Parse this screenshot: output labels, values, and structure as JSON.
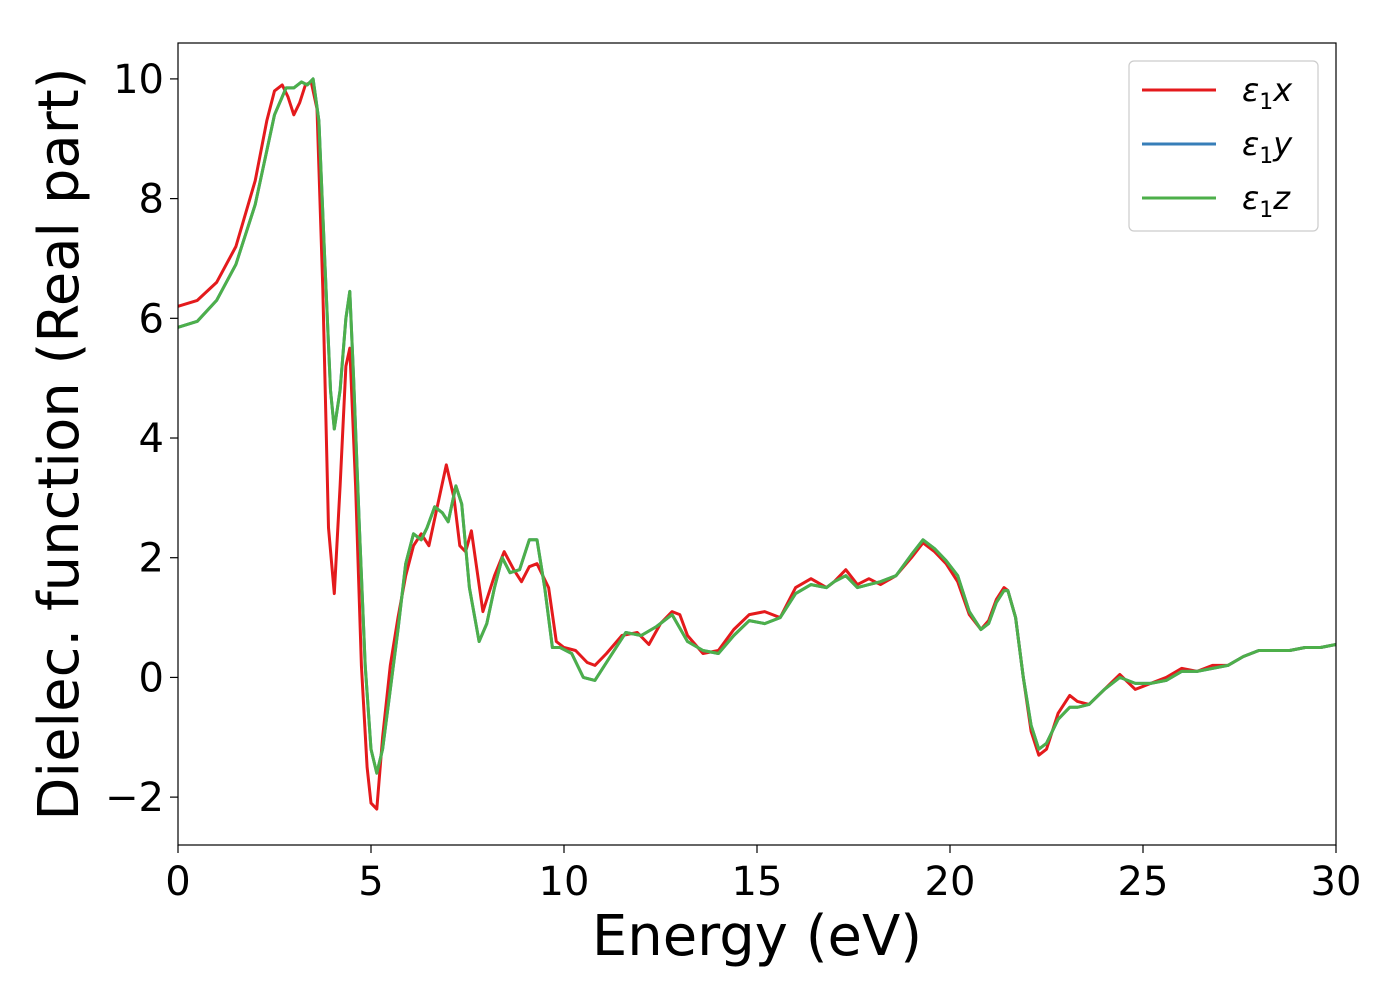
{
  "chart_data": {
    "type": "line",
    "xlabel": "Energy (eV)",
    "ylabel": "Dielec. function (Real part)",
    "xlim": [
      0,
      30
    ],
    "ylim": [
      -2.8,
      10.6
    ],
    "xticks": [
      0,
      5,
      10,
      15,
      20,
      25,
      30
    ],
    "xtick_labels": [
      "0",
      "5",
      "10",
      "15",
      "20",
      "25",
      "30"
    ],
    "yticks": [
      -2,
      0,
      2,
      4,
      6,
      8,
      10
    ],
    "ytick_labels": [
      "−2",
      "0",
      "2",
      "4",
      "6",
      "8",
      "10"
    ],
    "grid": false,
    "legend_position": "top-right",
    "series": [
      {
        "name": "ε1x",
        "legend_main": "ε",
        "legend_sub": "1",
        "legend_suffix": "x",
        "color": "#e41a1c",
        "x": [
          0,
          0.5,
          1.0,
          1.5,
          2.0,
          2.3,
          2.5,
          2.7,
          2.85,
          3.0,
          3.15,
          3.3,
          3.45,
          3.6,
          3.75,
          3.9,
          4.05,
          4.2,
          4.35,
          4.45,
          4.6,
          4.75,
          4.9,
          5.0,
          5.15,
          5.3,
          5.5,
          5.7,
          5.9,
          6.1,
          6.3,
          6.5,
          6.7,
          6.95,
          7.15,
          7.3,
          7.45,
          7.6,
          7.9,
          8.2,
          8.45,
          8.7,
          8.9,
          9.1,
          9.3,
          9.6,
          9.8,
          10.0,
          10.3,
          10.6,
          10.8,
          11.1,
          11.5,
          11.9,
          12.2,
          12.5,
          12.8,
          13.0,
          13.2,
          13.6,
          14.0,
          14.4,
          14.8,
          15.2,
          15.6,
          16.0,
          16.4,
          16.8,
          17.0,
          17.3,
          17.6,
          17.9,
          18.2,
          18.6,
          19.0,
          19.3,
          19.6,
          19.9,
          20.2,
          20.5,
          20.8,
          21.0,
          21.2,
          21.4,
          21.5,
          21.7,
          21.9,
          22.1,
          22.3,
          22.5,
          22.8,
          23.1,
          23.3,
          23.6,
          24.0,
          24.4,
          24.8,
          25.2,
          25.6,
          26.0,
          26.4,
          26.8,
          27.2,
          27.6,
          28.0,
          28.4,
          28.8,
          29.2,
          29.6,
          30.0
        ],
        "y": [
          6.2,
          6.3,
          6.6,
          7.2,
          8.3,
          9.3,
          9.8,
          9.9,
          9.7,
          9.4,
          9.6,
          9.9,
          9.95,
          9.5,
          6.5,
          2.5,
          1.4,
          3.2,
          5.2,
          5.5,
          3.2,
          0.2,
          -1.5,
          -2.1,
          -2.2,
          -1.0,
          0.2,
          1.0,
          1.7,
          2.2,
          2.4,
          2.2,
          2.8,
          3.55,
          3.0,
          2.2,
          2.1,
          2.45,
          1.1,
          1.7,
          2.1,
          1.8,
          1.6,
          1.85,
          1.9,
          1.5,
          0.6,
          0.5,
          0.45,
          0.25,
          0.2,
          0.4,
          0.7,
          0.75,
          0.55,
          0.9,
          1.1,
          1.05,
          0.7,
          0.4,
          0.45,
          0.8,
          1.05,
          1.1,
          1.0,
          1.5,
          1.65,
          1.5,
          1.6,
          1.8,
          1.55,
          1.65,
          1.55,
          1.7,
          2.0,
          2.25,
          2.1,
          1.9,
          1.6,
          1.05,
          0.8,
          0.95,
          1.3,
          1.5,
          1.45,
          1.0,
          0.0,
          -0.9,
          -1.3,
          -1.2,
          -0.6,
          -0.3,
          -0.4,
          -0.45,
          -0.2,
          0.05,
          -0.2,
          -0.1,
          0.0,
          0.15,
          0.1,
          0.2,
          0.2,
          0.35,
          0.45,
          0.45,
          0.45,
          0.5,
          0.5,
          0.55
        ]
      },
      {
        "name": "ε1y",
        "legend_main": "ε",
        "legend_sub": "1",
        "legend_suffix": "y",
        "color": "#377eb8",
        "x": [
          0,
          0.5,
          1.0,
          1.5,
          2.0,
          2.3,
          2.5,
          2.8,
          3.0,
          3.2,
          3.35,
          3.5,
          3.65,
          3.8,
          3.95,
          4.05,
          4.2,
          4.35,
          4.45,
          4.55,
          4.7,
          4.85,
          5.0,
          5.15,
          5.3,
          5.5,
          5.7,
          5.9,
          6.1,
          6.3,
          6.45,
          6.65,
          6.85,
          7.0,
          7.2,
          7.35,
          7.55,
          7.8,
          8.0,
          8.2,
          8.4,
          8.6,
          8.85,
          9.1,
          9.3,
          9.5,
          9.7,
          9.9,
          10.2,
          10.5,
          10.8,
          11.2,
          11.6,
          12.0,
          12.4,
          12.8,
          13.2,
          13.6,
          14.0,
          14.4,
          14.8,
          15.2,
          15.6,
          16.0,
          16.4,
          16.8,
          17.0,
          17.3,
          17.6,
          17.9,
          18.2,
          18.6,
          19.0,
          19.3,
          19.6,
          19.9,
          20.2,
          20.5,
          20.8,
          21.0,
          21.2,
          21.4,
          21.5,
          21.7,
          21.9,
          22.1,
          22.3,
          22.5,
          22.8,
          23.1,
          23.3,
          23.6,
          24.0,
          24.4,
          24.8,
          25.2,
          25.6,
          26.0,
          26.4,
          26.8,
          27.2,
          27.6,
          28.0,
          28.4,
          28.8,
          29.2,
          29.6,
          30.0
        ],
        "y": [
          5.85,
          5.95,
          6.3,
          6.9,
          7.9,
          8.8,
          9.4,
          9.85,
          9.85,
          9.95,
          9.9,
          10.0,
          9.3,
          7.0,
          4.8,
          4.15,
          4.8,
          6.0,
          6.45,
          5.0,
          2.5,
          0.2,
          -1.2,
          -1.6,
          -1.2,
          -0.2,
          0.8,
          1.9,
          2.4,
          2.3,
          2.5,
          2.85,
          2.75,
          2.6,
          3.2,
          2.9,
          1.5,
          0.6,
          0.9,
          1.5,
          2.0,
          1.75,
          1.8,
          2.3,
          2.3,
          1.5,
          0.5,
          0.5,
          0.4,
          0.0,
          -0.05,
          0.35,
          0.75,
          0.7,
          0.85,
          1.05,
          0.6,
          0.45,
          0.4,
          0.7,
          0.95,
          0.9,
          1.0,
          1.4,
          1.55,
          1.5,
          1.6,
          1.7,
          1.5,
          1.55,
          1.6,
          1.7,
          2.05,
          2.3,
          2.15,
          1.95,
          1.7,
          1.1,
          0.8,
          0.9,
          1.25,
          1.45,
          1.45,
          1.0,
          0.0,
          -0.8,
          -1.2,
          -1.1,
          -0.7,
          -0.5,
          -0.5,
          -0.45,
          -0.2,
          0.0,
          -0.1,
          -0.1,
          -0.05,
          0.1,
          0.1,
          0.15,
          0.2,
          0.35,
          0.45,
          0.45,
          0.45,
          0.5,
          0.5,
          0.55
        ]
      },
      {
        "name": "ε1z",
        "legend_main": "ε",
        "legend_sub": "1",
        "legend_suffix": "z",
        "color": "#4daf4a",
        "x": [
          0,
          0.5,
          1.0,
          1.5,
          2.0,
          2.3,
          2.5,
          2.8,
          3.0,
          3.2,
          3.35,
          3.5,
          3.65,
          3.8,
          3.95,
          4.05,
          4.2,
          4.35,
          4.45,
          4.55,
          4.7,
          4.85,
          5.0,
          5.15,
          5.3,
          5.5,
          5.7,
          5.9,
          6.1,
          6.3,
          6.45,
          6.65,
          6.85,
          7.0,
          7.2,
          7.35,
          7.55,
          7.8,
          8.0,
          8.2,
          8.4,
          8.6,
          8.85,
          9.1,
          9.3,
          9.5,
          9.7,
          9.9,
          10.2,
          10.5,
          10.8,
          11.2,
          11.6,
          12.0,
          12.4,
          12.8,
          13.2,
          13.6,
          14.0,
          14.4,
          14.8,
          15.2,
          15.6,
          16.0,
          16.4,
          16.8,
          17.0,
          17.3,
          17.6,
          17.9,
          18.2,
          18.6,
          19.0,
          19.3,
          19.6,
          19.9,
          20.2,
          20.5,
          20.8,
          21.0,
          21.2,
          21.4,
          21.5,
          21.7,
          21.9,
          22.1,
          22.3,
          22.5,
          22.8,
          23.1,
          23.3,
          23.6,
          24.0,
          24.4,
          24.8,
          25.2,
          25.6,
          26.0,
          26.4,
          26.8,
          27.2,
          27.6,
          28.0,
          28.4,
          28.8,
          29.2,
          29.6,
          30.0
        ],
        "y": [
          5.85,
          5.95,
          6.3,
          6.9,
          7.9,
          8.8,
          9.4,
          9.85,
          9.85,
          9.95,
          9.9,
          10.0,
          9.3,
          7.0,
          4.8,
          4.15,
          4.8,
          6.0,
          6.45,
          5.0,
          2.5,
          0.2,
          -1.2,
          -1.6,
          -1.2,
          -0.2,
          0.8,
          1.9,
          2.4,
          2.3,
          2.5,
          2.85,
          2.75,
          2.6,
          3.2,
          2.9,
          1.5,
          0.6,
          0.9,
          1.5,
          2.0,
          1.75,
          1.8,
          2.3,
          2.3,
          1.5,
          0.5,
          0.5,
          0.4,
          0.0,
          -0.05,
          0.35,
          0.75,
          0.7,
          0.85,
          1.05,
          0.6,
          0.45,
          0.4,
          0.7,
          0.95,
          0.9,
          1.0,
          1.4,
          1.55,
          1.5,
          1.6,
          1.7,
          1.5,
          1.55,
          1.6,
          1.7,
          2.05,
          2.3,
          2.15,
          1.95,
          1.7,
          1.1,
          0.8,
          0.9,
          1.25,
          1.45,
          1.45,
          1.0,
          0.0,
          -0.8,
          -1.2,
          -1.1,
          -0.7,
          -0.5,
          -0.5,
          -0.45,
          -0.2,
          0.0,
          -0.1,
          -0.1,
          -0.05,
          0.1,
          0.1,
          0.15,
          0.2,
          0.35,
          0.45,
          0.45,
          0.45,
          0.5,
          0.5,
          0.55
        ]
      }
    ]
  }
}
